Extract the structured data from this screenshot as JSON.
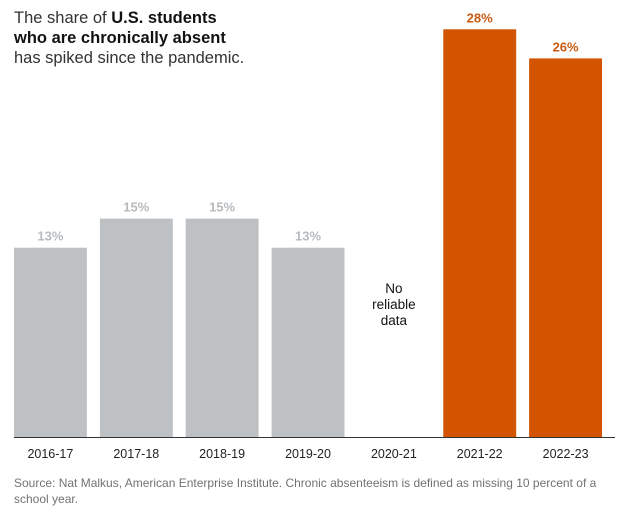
{
  "title": {
    "part1": "The share of ",
    "bold": "U.S. students who are chronically absent",
    "part2": " has spiked since the pandemic."
  },
  "colors": {
    "pre_pandemic": "#bdc1c4",
    "post_pandemic": "#d35400",
    "pre_label": "#b7bbbe",
    "post_label": "#c85a12",
    "axis": "#333333"
  },
  "chart_data": {
    "type": "bar",
    "categories": [
      "2016-17",
      "2017-18",
      "2018-19",
      "2019-20",
      "2020-21",
      "2021-22",
      "2022-23"
    ],
    "values": [
      13,
      15,
      15,
      13,
      null,
      28,
      26
    ],
    "value_labels": [
      "13%",
      "15%",
      "15%",
      "13%",
      "",
      "28%",
      "26%"
    ],
    "highlight": [
      false,
      false,
      false,
      false,
      false,
      true,
      true
    ],
    "missing_note": [
      "No",
      "reliable",
      "data"
    ],
    "ylim": [
      0,
      28.5
    ],
    "grid": false,
    "xlabel": "",
    "ylabel": ""
  },
  "source": "Source: Nat Malkus, American Enterprise Institute. Chronic absenteeism is defined as missing 10 percent of a school year."
}
